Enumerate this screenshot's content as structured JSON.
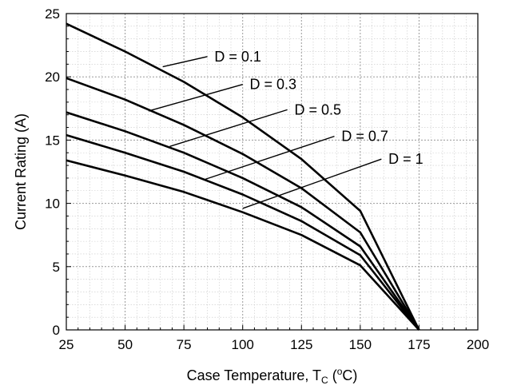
{
  "chart_data": {
    "type": "line",
    "xlabel": "Case Temperature, T",
    "xlabel_sub": "C",
    "xlabel_open": " (",
    "xlabel_sup": "o",
    "xlabel_close": "C)",
    "ylabel": "Current Rating (A)",
    "xlim": [
      25,
      200
    ],
    "ylim": [
      0,
      25
    ],
    "x_ticks": [
      "25",
      "50",
      "75",
      "100",
      "125",
      "150",
      "175",
      "200"
    ],
    "y_ticks": [
      "0",
      "5",
      "10",
      "15",
      "20",
      "25"
    ],
    "grid": true,
    "minor_grid": true,
    "line_color": "#000000",
    "series": [
      {
        "name": "D = 0.1",
        "x": [
          25,
          50,
          75,
          100,
          125,
          150,
          175
        ],
        "y": [
          24.2,
          22.0,
          19.6,
          16.8,
          13.5,
          9.4,
          0
        ]
      },
      {
        "name": "D = 0.3",
        "x": [
          25,
          50,
          75,
          100,
          125,
          150,
          175
        ],
        "y": [
          19.9,
          18.2,
          16.2,
          13.9,
          11.2,
          7.7,
          0
        ]
      },
      {
        "name": "D = 0.5",
        "x": [
          25,
          50,
          75,
          100,
          125,
          150,
          175
        ],
        "y": [
          17.2,
          15.7,
          14.0,
          12.0,
          9.7,
          6.6,
          0
        ]
      },
      {
        "name": "D = 0.7",
        "x": [
          25,
          50,
          75,
          100,
          125,
          150,
          175
        ],
        "y": [
          15.4,
          14.0,
          12.5,
          10.7,
          8.6,
          5.9,
          0
        ]
      },
      {
        "name": "D = 1",
        "x": [
          25,
          50,
          75,
          100,
          125,
          150,
          175
        ],
        "y": [
          13.4,
          12.2,
          10.9,
          9.3,
          7.5,
          5.1,
          0
        ]
      }
    ],
    "annotations": [
      {
        "text": "D = 0.1",
        "leader_from": [
          66,
          20.8
        ],
        "leader_to": [
          85,
          21.6
        ],
        "label_at": [
          88,
          21.6
        ]
      },
      {
        "text": "D = 0.3",
        "leader_from": [
          60,
          17.3
        ],
        "leader_to": [
          100,
          19.4
        ],
        "label_at": [
          103,
          19.4
        ]
      },
      {
        "text": "D = 0.5",
        "leader_from": [
          69,
          14.5
        ],
        "leader_to": [
          119,
          17.4
        ],
        "label_at": [
          122,
          17.4
        ]
      },
      {
        "text": "D = 0.7",
        "leader_from": [
          84,
          11.9
        ],
        "leader_to": [
          139,
          15.3
        ],
        "label_at": [
          142,
          15.3
        ]
      },
      {
        "text": "D = 1",
        "leader_from": [
          100,
          9.6
        ],
        "leader_to": [
          159,
          13.5
        ],
        "label_at": [
          162,
          13.5
        ]
      }
    ]
  }
}
